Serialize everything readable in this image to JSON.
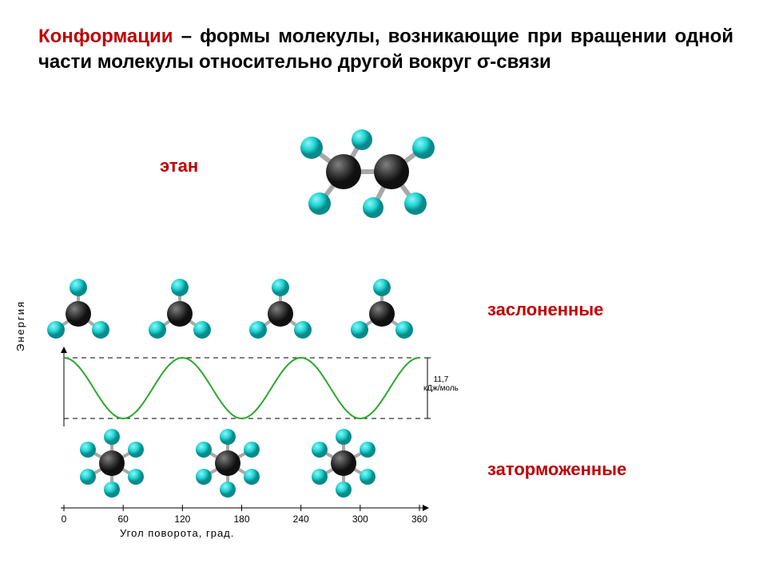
{
  "definition": {
    "term": "Конформации",
    "rest": " – формы молекулы, возникающие при вращении одной части молекулы относительно другой вокруг σ-связи"
  },
  "labels": {
    "ethane": "этан",
    "eclipsed": "заслоненные",
    "staggered": "заторможенные",
    "yAxis": "Энергия",
    "xAxis": "Угол поворота, град.",
    "barrier1": "11,7",
    "barrier2": "кДж/моль"
  },
  "colors": {
    "hydrogen": "#1fd4d4",
    "hydrogenDark": "#0a9494",
    "carbon": "#3a3a3a",
    "carbonLight": "#6a6a6a",
    "bond": "#a8a8a8",
    "curve": "#2aa82a",
    "axis": "#000000",
    "dash": "#000000",
    "accent": "#c00000"
  },
  "chart": {
    "xmin": 0,
    "xmax": 360,
    "ticks": [
      0,
      60,
      120,
      180,
      240,
      300,
      360
    ],
    "periods": 3,
    "phase_deg": 0
  }
}
